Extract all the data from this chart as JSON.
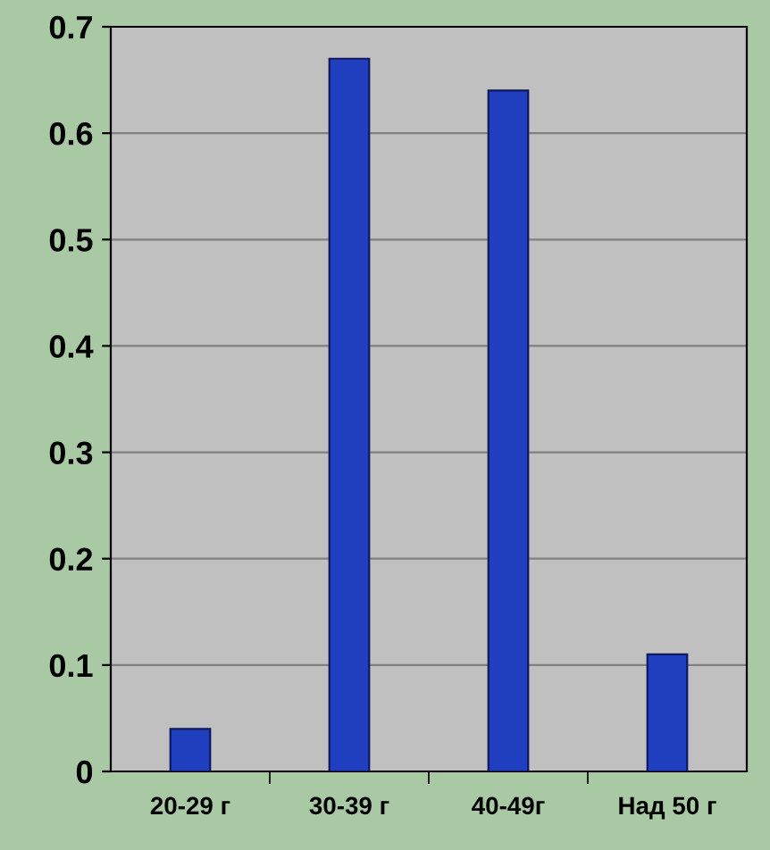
{
  "chart_data": {
    "type": "bar",
    "categories": [
      "20-29 г",
      "30-39 г",
      "40-49г",
      "Над 50 г"
    ],
    "values": [
      0.04,
      0.67,
      0.64,
      0.11
    ],
    "color": "#1f3fbf",
    "ylim": [
      0,
      0.7
    ],
    "yticks": [
      0,
      0.1,
      0.2,
      0.3,
      0.4,
      0.5,
      0.6,
      0.7
    ],
    "grid": "y",
    "legend": false
  }
}
